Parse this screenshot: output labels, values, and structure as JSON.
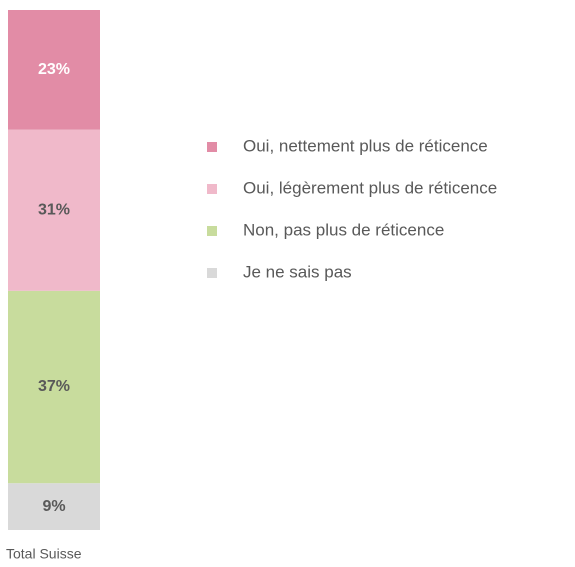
{
  "chart_data": {
    "type": "stacked-bar",
    "categories": [
      "Total Suisse"
    ],
    "ylim": [
      0,
      100
    ],
    "series": [
      {
        "name": "Oui, nettement plus de réticence",
        "color": "#e28ca6",
        "values": [
          23
        ],
        "value_labels": [
          "23%"
        ]
      },
      {
        "name": "Oui, légèrement plus de réticence",
        "color": "#f0b9ca",
        "values": [
          31
        ],
        "value_labels": [
          "31%"
        ]
      },
      {
        "name": "Non, pas plus de réticence",
        "color": "#c8dc9d",
        "values": [
          37
        ],
        "value_labels": [
          "37%"
        ]
      },
      {
        "name": "Je ne sais pas",
        "color": "#d9d9d9",
        "values": [
          9
        ],
        "value_labels": [
          "9%"
        ]
      }
    ]
  }
}
